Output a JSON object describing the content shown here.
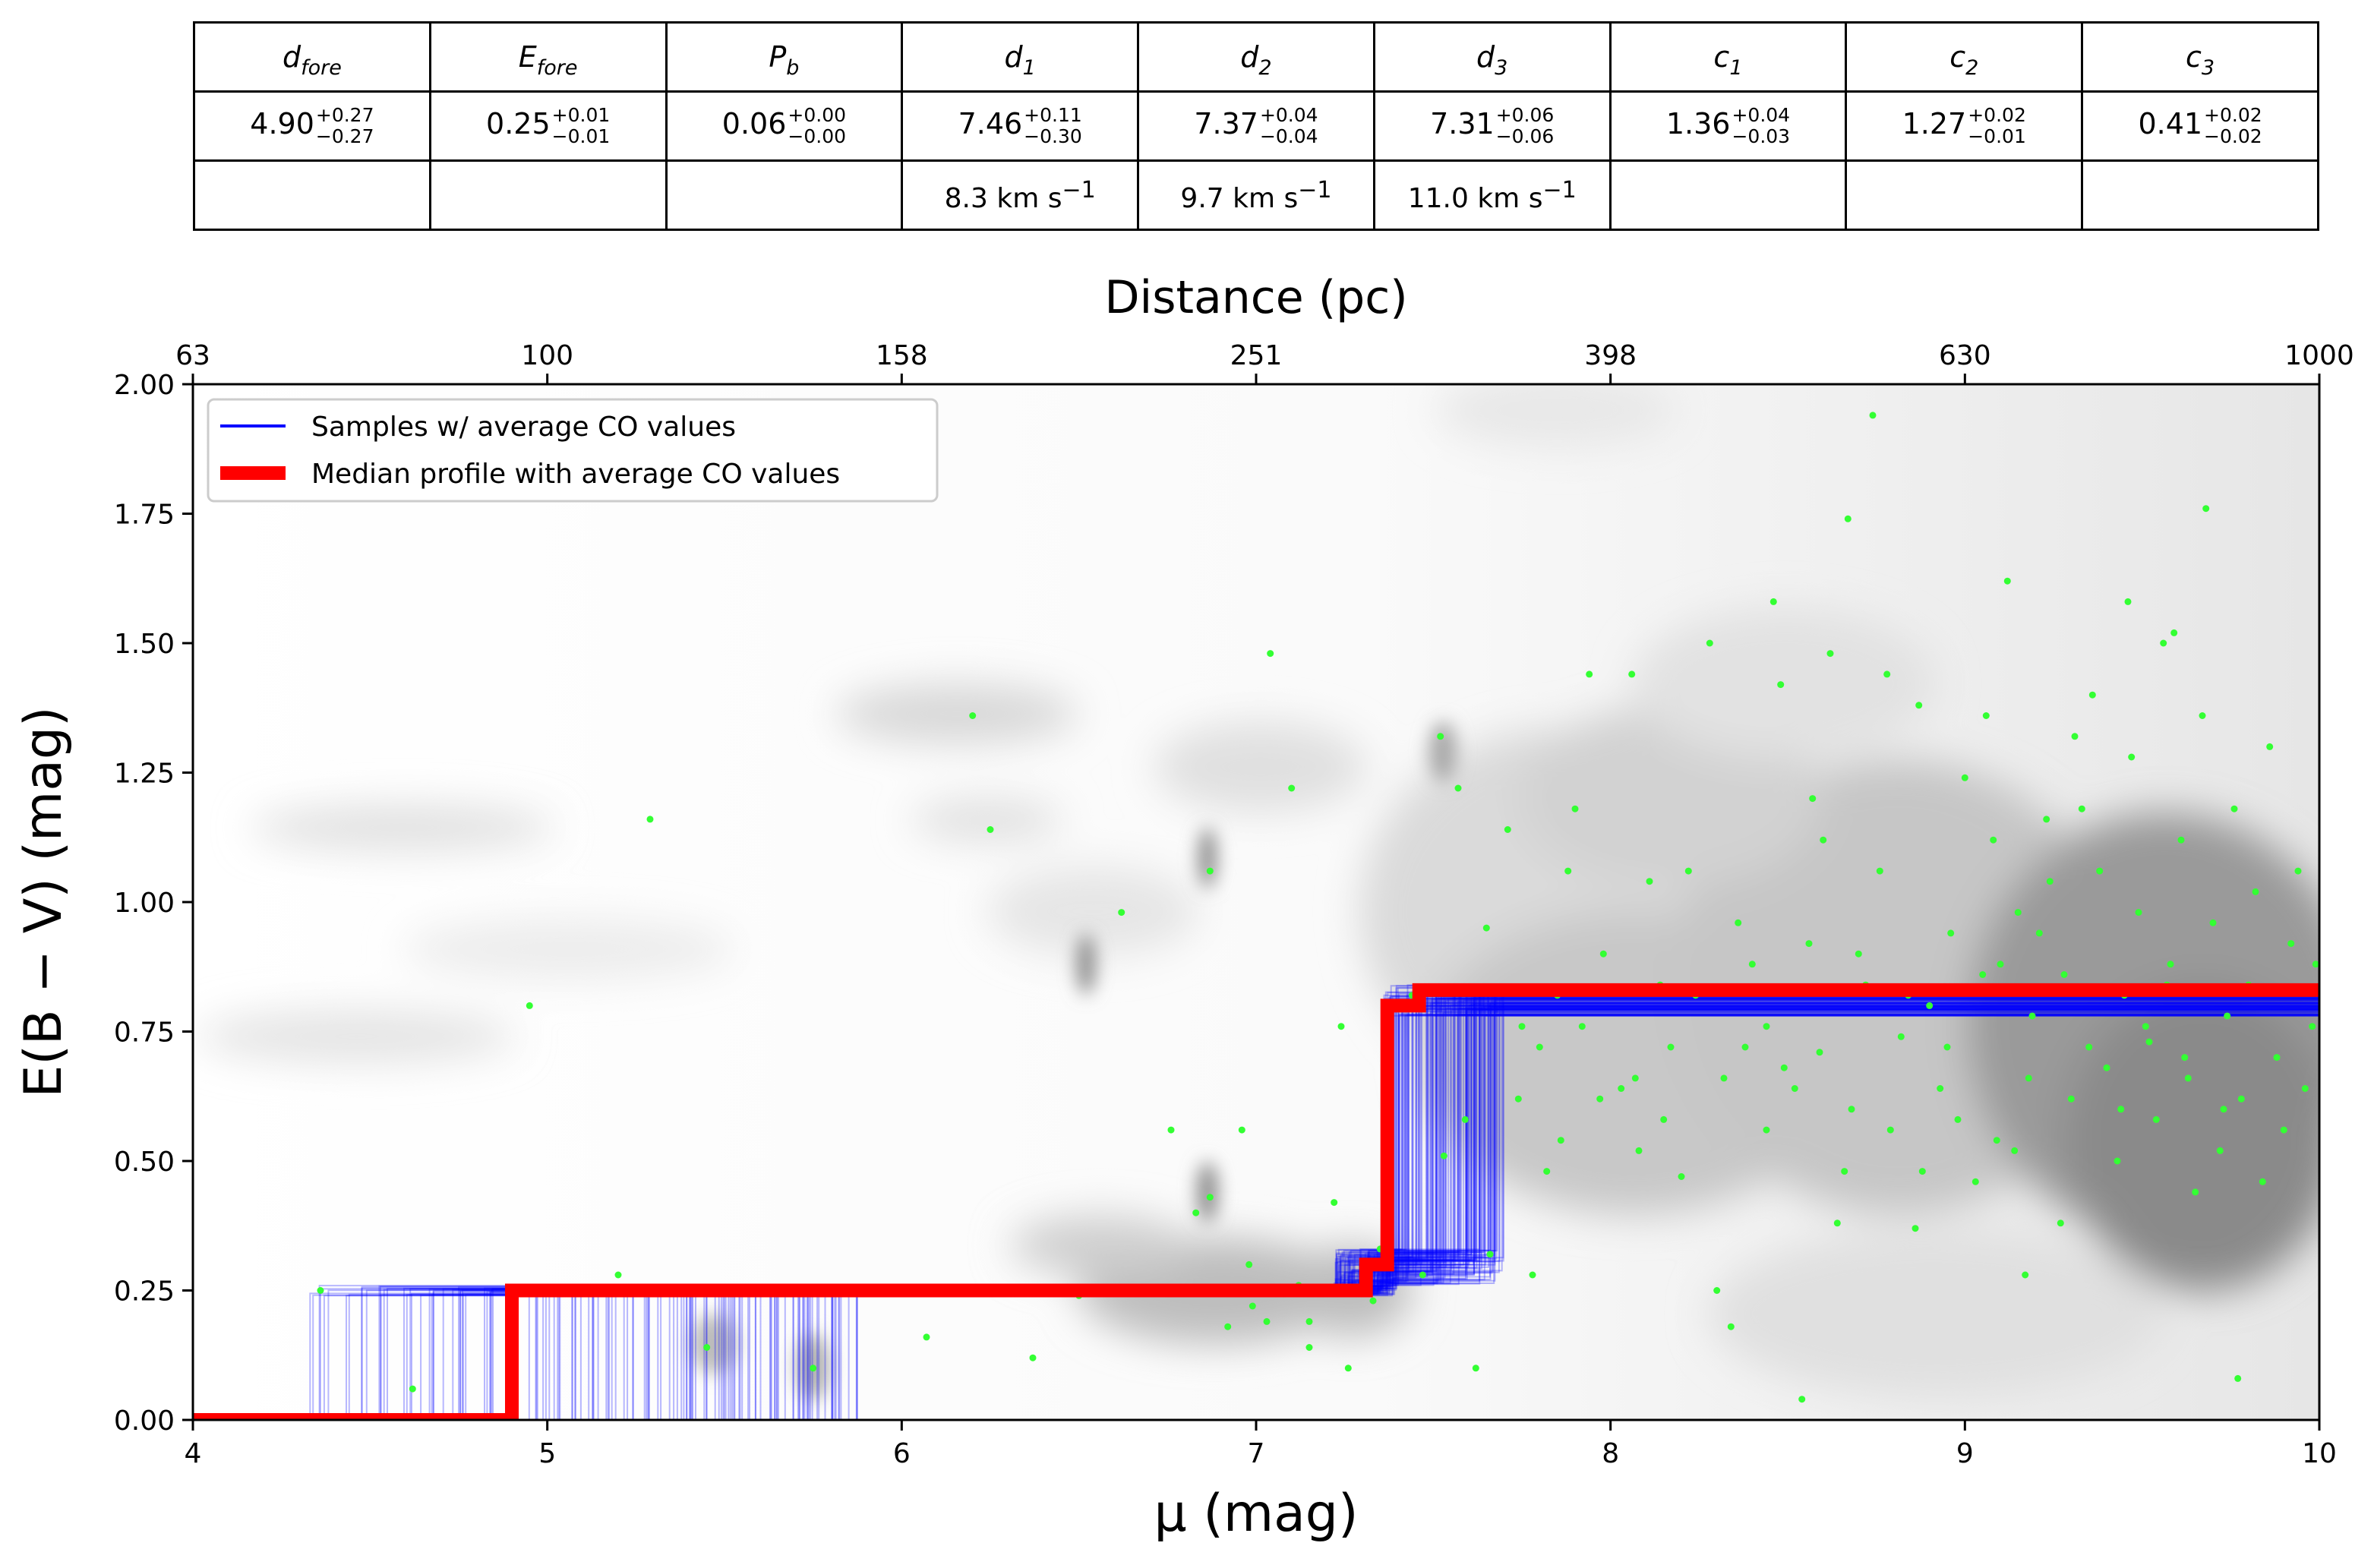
{
  "table": {
    "headers": [
      {
        "base": "d",
        "sub": "fore"
      },
      {
        "base": "E",
        "sub": "fore"
      },
      {
        "base": "P",
        "sub": "b"
      },
      {
        "base": "d",
        "sub": "1"
      },
      {
        "base": "d",
        "sub": "2"
      },
      {
        "base": "d",
        "sub": "3"
      },
      {
        "base": "c",
        "sub": "1"
      },
      {
        "base": "c",
        "sub": "2"
      },
      {
        "base": "c",
        "sub": "3"
      }
    ],
    "values": [
      {
        "main": "4.90",
        "plus": "+0.27",
        "minus": "−0.27"
      },
      {
        "main": "0.25",
        "plus": "+0.01",
        "minus": "−0.01"
      },
      {
        "main": "0.06",
        "plus": "+0.00",
        "minus": "−0.00"
      },
      {
        "main": "7.46",
        "plus": "+0.11",
        "minus": "−0.30"
      },
      {
        "main": "7.37",
        "plus": "+0.04",
        "minus": "−0.04"
      },
      {
        "main": "7.31",
        "plus": "+0.06",
        "minus": "−0.06"
      },
      {
        "main": "1.36",
        "plus": "+0.04",
        "minus": "−0.03"
      },
      {
        "main": "1.27",
        "plus": "+0.02",
        "minus": "−0.01"
      },
      {
        "main": "0.41",
        "plus": "+0.02",
        "minus": "−0.02"
      }
    ],
    "velocities": [
      "",
      "",
      "",
      "8.3 km s",
      "9.7 km s",
      "11.0 km s",
      "",
      "",
      ""
    ],
    "velocity_exponent": "−1"
  },
  "chart_data": {
    "type": "line",
    "xlabel": "μ (mag)",
    "ylabel": "E(B − V) (mag)",
    "top_xlabel": "Distance (pc)",
    "xlim": [
      4,
      10
    ],
    "ylim": [
      0,
      2
    ],
    "x_ticks": [
      4,
      5,
      6,
      7,
      8,
      9,
      10
    ],
    "y_ticks": [
      0,
      0.25,
      0.5,
      0.75,
      1.0,
      1.25,
      1.5,
      1.75,
      2.0
    ],
    "y_tick_labels": [
      "0.00",
      "0.25",
      "0.50",
      "0.75",
      "1.00",
      "1.25",
      "1.50",
      "1.75",
      "2.00"
    ],
    "top_ticks_mu": [
      4,
      5,
      6,
      7,
      8,
      9,
      10
    ],
    "top_tick_labels": [
      "63",
      "100",
      "158",
      "251",
      "398",
      "630",
      "1000"
    ],
    "legend": {
      "position": "top-left",
      "entries": [
        {
          "label": "Samples  w/ average CO values",
          "color": "#0000ff"
        },
        {
          "label": "Median profile with average CO values",
          "color": "#ff0000"
        }
      ]
    },
    "series": [
      {
        "name": "Median profile with average CO values",
        "color": "#ff0000",
        "points": [
          [
            4.0,
            0.0
          ],
          [
            4.9,
            0.0
          ],
          [
            4.9,
            0.25
          ],
          [
            7.31,
            0.25
          ],
          [
            7.31,
            0.3
          ],
          [
            7.37,
            0.3
          ],
          [
            7.37,
            0.8
          ],
          [
            7.46,
            0.8
          ],
          [
            7.46,
            0.83
          ],
          [
            10.0,
            0.83
          ]
        ]
      },
      {
        "name": "Samples  w/ average CO values",
        "color": "#0000ff",
        "step_ranges": {
          "d_fore": [
            4.33,
            5.88
          ],
          "d_3": [
            7.22,
            7.4
          ],
          "d_1": [
            7.36,
            7.7
          ],
          "e_fore": [
            0.24,
            0.26
          ],
          "e_mid": [
            0.26,
            0.33
          ],
          "e_high": [
            0.78,
            0.84
          ]
        }
      }
    ],
    "stars": [
      [
        4.36,
        0.25
      ],
      [
        4.62,
        0.06
      ],
      [
        4.95,
        0.8
      ],
      [
        5.2,
        0.28
      ],
      [
        5.29,
        1.16
      ],
      [
        5.45,
        0.14
      ],
      [
        5.75,
        0.1
      ],
      [
        6.07,
        0.16
      ],
      [
        6.2,
        1.36
      ],
      [
        6.25,
        1.14
      ],
      [
        6.37,
        0.12
      ],
      [
        6.5,
        0.24
      ],
      [
        6.62,
        0.98
      ],
      [
        6.76,
        0.56
      ],
      [
        6.8,
        0.25
      ],
      [
        6.83,
        0.4
      ],
      [
        6.87,
        1.06
      ],
      [
        6.87,
        0.43
      ],
      [
        6.92,
        0.18
      ],
      [
        6.96,
        0.56
      ],
      [
        6.98,
        0.3
      ],
      [
        6.99,
        0.22
      ],
      [
        7.03,
        0.19
      ],
      [
        7.04,
        1.48
      ],
      [
        7.1,
        1.22
      ],
      [
        7.12,
        0.26
      ],
      [
        7.15,
        0.19
      ],
      [
        7.15,
        0.14
      ],
      [
        7.22,
        0.42
      ],
      [
        7.24,
        0.76
      ],
      [
        7.26,
        0.1
      ],
      [
        7.33,
        0.23
      ],
      [
        7.35,
        0.33
      ],
      [
        7.44,
        0.82
      ],
      [
        7.47,
        0.28
      ],
      [
        7.52,
        1.32
      ],
      [
        7.53,
        0.51
      ],
      [
        7.57,
        1.22
      ],
      [
        7.59,
        0.58
      ],
      [
        7.62,
        0.1
      ],
      [
        7.65,
        0.95
      ],
      [
        7.66,
        0.32
      ],
      [
        7.71,
        1.14
      ],
      [
        7.74,
        0.62
      ],
      [
        7.75,
        0.76
      ],
      [
        7.78,
        0.28
      ],
      [
        7.82,
        0.48
      ],
      [
        7.85,
        0.82
      ],
      [
        7.88,
        1.06
      ],
      [
        7.9,
        1.18
      ],
      [
        7.94,
        1.44
      ],
      [
        7.98,
        0.9
      ],
      [
        8.03,
        0.64
      ],
      [
        8.06,
        1.44
      ],
      [
        8.07,
        0.66
      ],
      [
        8.11,
        1.04
      ],
      [
        8.15,
        0.58
      ],
      [
        8.17,
        0.72
      ],
      [
        8.2,
        0.47
      ],
      [
        8.24,
        0.82
      ],
      [
        8.28,
        1.5
      ],
      [
        8.3,
        0.25
      ],
      [
        8.34,
        0.18
      ],
      [
        8.38,
        0.72
      ],
      [
        8.4,
        0.88
      ],
      [
        8.44,
        0.76
      ],
      [
        8.46,
        1.58
      ],
      [
        8.48,
        1.42
      ],
      [
        8.52,
        0.64
      ],
      [
        8.54,
        0.04
      ],
      [
        8.57,
        1.2
      ],
      [
        8.59,
        0.71
      ],
      [
        8.6,
        1.12
      ],
      [
        8.62,
        1.48
      ],
      [
        8.64,
        0.38
      ],
      [
        8.67,
        1.74
      ],
      [
        8.68,
        0.6
      ],
      [
        8.7,
        0.9
      ],
      [
        8.74,
        1.94
      ],
      [
        8.76,
        1.06
      ],
      [
        8.78,
        1.44
      ],
      [
        8.82,
        0.74
      ],
      [
        8.86,
        0.37
      ],
      [
        8.87,
        1.38
      ],
      [
        8.9,
        0.8
      ],
      [
        8.93,
        0.64
      ],
      [
        8.95,
        0.72
      ],
      [
        9.0,
        1.24
      ],
      [
        9.03,
        0.46
      ],
      [
        9.06,
        1.36
      ],
      [
        9.08,
        1.12
      ],
      [
        9.1,
        0.88
      ],
      [
        9.12,
        1.62
      ],
      [
        9.14,
        0.52
      ],
      [
        9.17,
        0.28
      ],
      [
        9.19,
        0.78
      ],
      [
        9.21,
        0.94
      ],
      [
        9.24,
        1.04
      ],
      [
        9.27,
        0.38
      ],
      [
        9.3,
        0.62
      ],
      [
        9.33,
        1.18
      ],
      [
        9.36,
        1.4
      ],
      [
        9.38,
        1.06
      ],
      [
        9.4,
        0.68
      ],
      [
        9.43,
        0.5
      ],
      [
        9.45,
        0.82
      ],
      [
        9.47,
        1.28
      ],
      [
        9.49,
        0.98
      ],
      [
        9.52,
        0.73
      ],
      [
        9.54,
        0.58
      ],
      [
        9.56,
        1.5
      ],
      [
        9.58,
        0.88
      ],
      [
        9.61,
        1.12
      ],
      [
        9.63,
        0.66
      ],
      [
        9.65,
        0.44
      ],
      [
        9.67,
        1.36
      ],
      [
        9.7,
        0.96
      ],
      [
        9.72,
        0.52
      ],
      [
        9.74,
        0.78
      ],
      [
        9.76,
        1.18
      ],
      [
        9.78,
        0.62
      ],
      [
        9.8,
        0.84
      ],
      [
        9.82,
        1.02
      ],
      [
        9.84,
        0.46
      ],
      [
        9.86,
        1.3
      ],
      [
        9.88,
        0.7
      ],
      [
        9.9,
        0.56
      ],
      [
        9.92,
        0.92
      ],
      [
        9.94,
        1.06
      ],
      [
        9.96,
        0.64
      ],
      [
        9.98,
        0.76
      ],
      [
        9.99,
        0.88
      ],
      [
        9.51,
        0.76
      ],
      [
        9.62,
        0.7
      ],
      [
        9.73,
        0.6
      ],
      [
        9.68,
        1.76
      ],
      [
        9.59,
        1.52
      ],
      [
        9.46,
        1.58
      ],
      [
        9.31,
        1.32
      ],
      [
        9.23,
        1.16
      ],
      [
        9.15,
        0.98
      ],
      [
        9.05,
        0.86
      ],
      [
        8.98,
        0.58
      ],
      [
        8.88,
        0.48
      ],
      [
        8.79,
        0.56
      ],
      [
        8.72,
        0.84
      ],
      [
        8.56,
        0.92
      ],
      [
        8.49,
        0.68
      ],
      [
        8.36,
        0.96
      ],
      [
        8.22,
        1.06
      ],
      [
        8.14,
        0.84
      ],
      [
        8.08,
        0.52
      ],
      [
        7.97,
        0.62
      ],
      [
        7.92,
        0.76
      ],
      [
        7.86,
        0.54
      ],
      [
        7.8,
        0.72
      ],
      [
        9.77,
        0.08
      ],
      [
        9.57,
        0.84
      ],
      [
        9.44,
        0.6
      ],
      [
        9.35,
        0.72
      ],
      [
        9.28,
        0.86
      ],
      [
        9.18,
        0.66
      ],
      [
        9.09,
        0.54
      ],
      [
        8.96,
        0.94
      ],
      [
        8.84,
        0.82
      ],
      [
        8.66,
        0.48
      ],
      [
        8.44,
        0.56
      ],
      [
        8.32,
        0.66
      ]
    ]
  }
}
